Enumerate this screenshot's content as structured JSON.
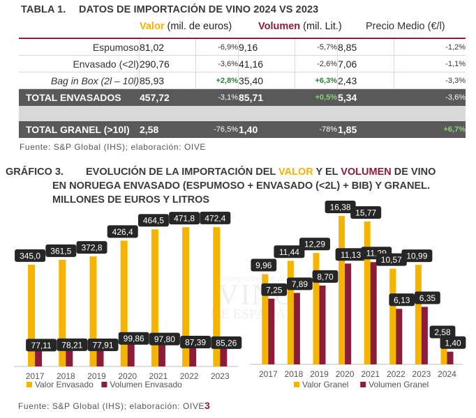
{
  "table": {
    "number": "TABLA 1.",
    "title": "DATOS DE IMPORTACIÓN DE VINO 2024 VS 2023",
    "col_valor_bold": "Valor",
    "col_valor_rest": " (mil. de euros)",
    "col_volumen_bold": "Volumen",
    "col_volumen_rest": " (mil. Lit.)",
    "col_precio": "Precio Medio (€/l)",
    "rows": [
      {
        "label": "Espumoso",
        "valor": "81,02",
        "valor_pct": "-6,9%",
        "vol": "9,16",
        "vol_pct": "-5,7%",
        "precio": "8,85",
        "precio_pct": "-1,2%"
      },
      {
        "label": "Envasado (<2l)",
        "valor": "290,76",
        "valor_pct": "-3,6%",
        "vol": "41,16",
        "vol_pct": "-2,6%",
        "precio": "7,06",
        "precio_pct": "-1,1%"
      },
      {
        "label": "Bag in Box (2l – 10l)",
        "valor": "85,93",
        "valor_pct": "+2,8%",
        "vol": "35,40",
        "vol_pct": "+6,3%",
        "precio": "2,43",
        "precio_pct": "-3,3%"
      },
      {
        "label": "TOTAL ENVASADOS",
        "valor": "457,72",
        "valor_pct": "-3,1%",
        "vol": "85,71",
        "vol_pct": "+0,5%",
        "precio": "5,34",
        "precio_pct": "-3,6%"
      },
      {
        "label": "TOTAL GRANEL (>10l)",
        "valor": "2,58",
        "valor_pct": "-76,5%",
        "vol": "1,40",
        "vol_pct": "-78%",
        "precio": "1,85",
        "precio_pct": "+6,7%"
      }
    ],
    "source": "Fuente: S&P Global (IHS); elaboración: OIVE"
  },
  "grafico": {
    "number": "GRÁFICO 3.",
    "line1_a": "EVOLUCIÓN DE LA IMPORTACIÓN DEL ",
    "line1_valor": "VALOR",
    "line1_b": " Y EL ",
    "line1_volumen": "VOLUMEN",
    "line1_c": " DE VINO",
    "line2": "EN NORUEGA ENVASADO (ESPUMOSO + ENVASADO (<2L) + BIB) Y GRANEL.",
    "line3": "MILLONES DE EUROS Y LITROS",
    "source_a": "Fuente: S&P Global (IHS); elaboración: OIVE",
    "source_b": "3",
    "watermark": {
      "line1": "Interprofesional del",
      "line2": "VINO",
      "line3": "DE ESPAÑA"
    }
  },
  "colors": {
    "valor": "#f5b400",
    "volumen": "#8b1d3b",
    "label_bg": "#262626"
  },
  "chart_data": [
    {
      "type": "bar",
      "title": "Envasado",
      "categories": [
        "2017",
        "2018",
        "2019",
        "2020",
        "2021",
        "2022",
        "2023"
      ],
      "series": [
        {
          "name": "Valor Envasado",
          "values": [
            345.0,
            361.5,
            372.8,
            426.4,
            464.5,
            471.8,
            472.4
          ],
          "labels": [
            "345,0",
            "361,5",
            "372,8",
            "426,4",
            "464,5",
            "471,8",
            "472,4"
          ]
        },
        {
          "name": "Volumen Envasado",
          "values": [
            77.11,
            78.21,
            77.91,
            99.86,
            97.8,
            87.39,
            85.26
          ],
          "labels": [
            "77,11",
            "78,21",
            "77,91",
            "99,86",
            "97,80",
            "87,39",
            "85,26"
          ]
        }
      ],
      "ylim": [
        0,
        520
      ],
      "legend": "bottom"
    },
    {
      "type": "bar",
      "title": "Granel",
      "categories": [
        "2017",
        "2018",
        "2019",
        "2020",
        "2021",
        "2022",
        "2023",
        "2024"
      ],
      "series": [
        {
          "name": "Valor Granel",
          "values": [
            9.96,
            11.44,
            12.29,
            16.38,
            15.77,
            10.57,
            10.99,
            2.58
          ],
          "labels": [
            "9,96",
            "11,44",
            "12,29",
            "16,38",
            "15,77",
            "10,57",
            "10,99",
            "2,58"
          ]
        },
        {
          "name": "Volumen Granel",
          "values": [
            7.25,
            7.89,
            8.7,
            11.13,
            11.29,
            6.13,
            6.35,
            1.4
          ],
          "labels": [
            "7,25",
            "7,89",
            "8,70",
            "11,13",
            "11,29",
            "6,13",
            "6,35",
            "1,40"
          ]
        }
      ],
      "ylim": [
        0,
        18
      ],
      "legend": "bottom"
    }
  ]
}
